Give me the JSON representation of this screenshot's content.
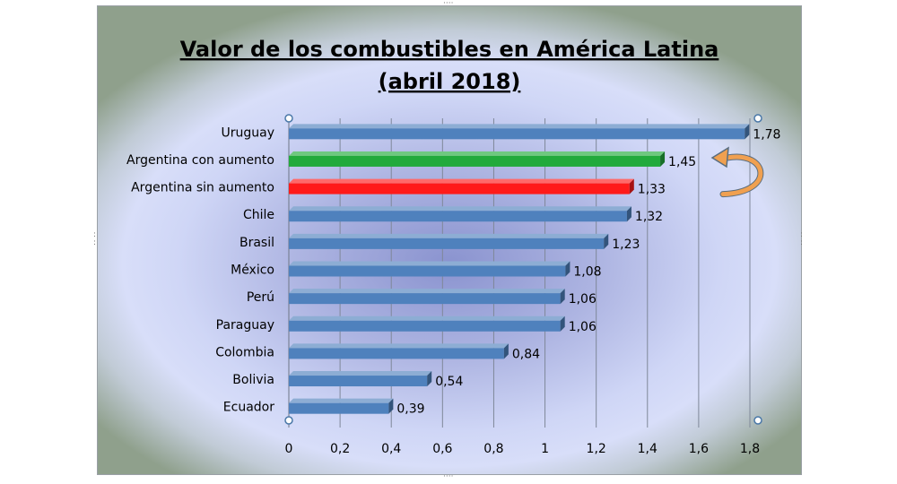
{
  "chart_data": {
    "type": "bar",
    "orientation": "horizontal",
    "title_lines": [
      "Valor de los combustibles en América Latina",
      "(abril 2018)"
    ],
    "categories": [
      "Uruguay",
      "Argentina con aumento",
      "Argentina sin aumento",
      "Chile",
      "Brasil",
      "México",
      "Perú",
      "Paraguay",
      "Colombia",
      "Bolivia",
      "Ecuador"
    ],
    "values": [
      1.78,
      1.45,
      1.33,
      1.32,
      1.23,
      1.08,
      1.06,
      1.06,
      0.84,
      0.54,
      0.39
    ],
    "value_labels": [
      "1,78",
      "1,45",
      "1,33",
      "1,32",
      "1,23",
      "1,08",
      "1,06",
      "1,06",
      "0,84",
      "0,54",
      "0,39"
    ],
    "bar_colors": [
      "#4f81bd",
      "#22aa3c",
      "#ff1a1a",
      "#4f81bd",
      "#4f81bd",
      "#4f81bd",
      "#4f81bd",
      "#4f81bd",
      "#4f81bd",
      "#4f81bd",
      "#4f81bd"
    ],
    "xlim": [
      0,
      1.8
    ],
    "xticks": [
      0,
      0.2,
      0.4,
      0.6,
      0.8,
      1,
      1.2,
      1.4,
      1.6,
      1.8
    ],
    "xtick_labels": [
      "0",
      "0,2",
      "0,4",
      "0,6",
      "0,8",
      "1",
      "1,2",
      "1,4",
      "1,6",
      "1,8"
    ],
    "grid": "vertical",
    "annotation_arrow_color": "#f0a050"
  }
}
